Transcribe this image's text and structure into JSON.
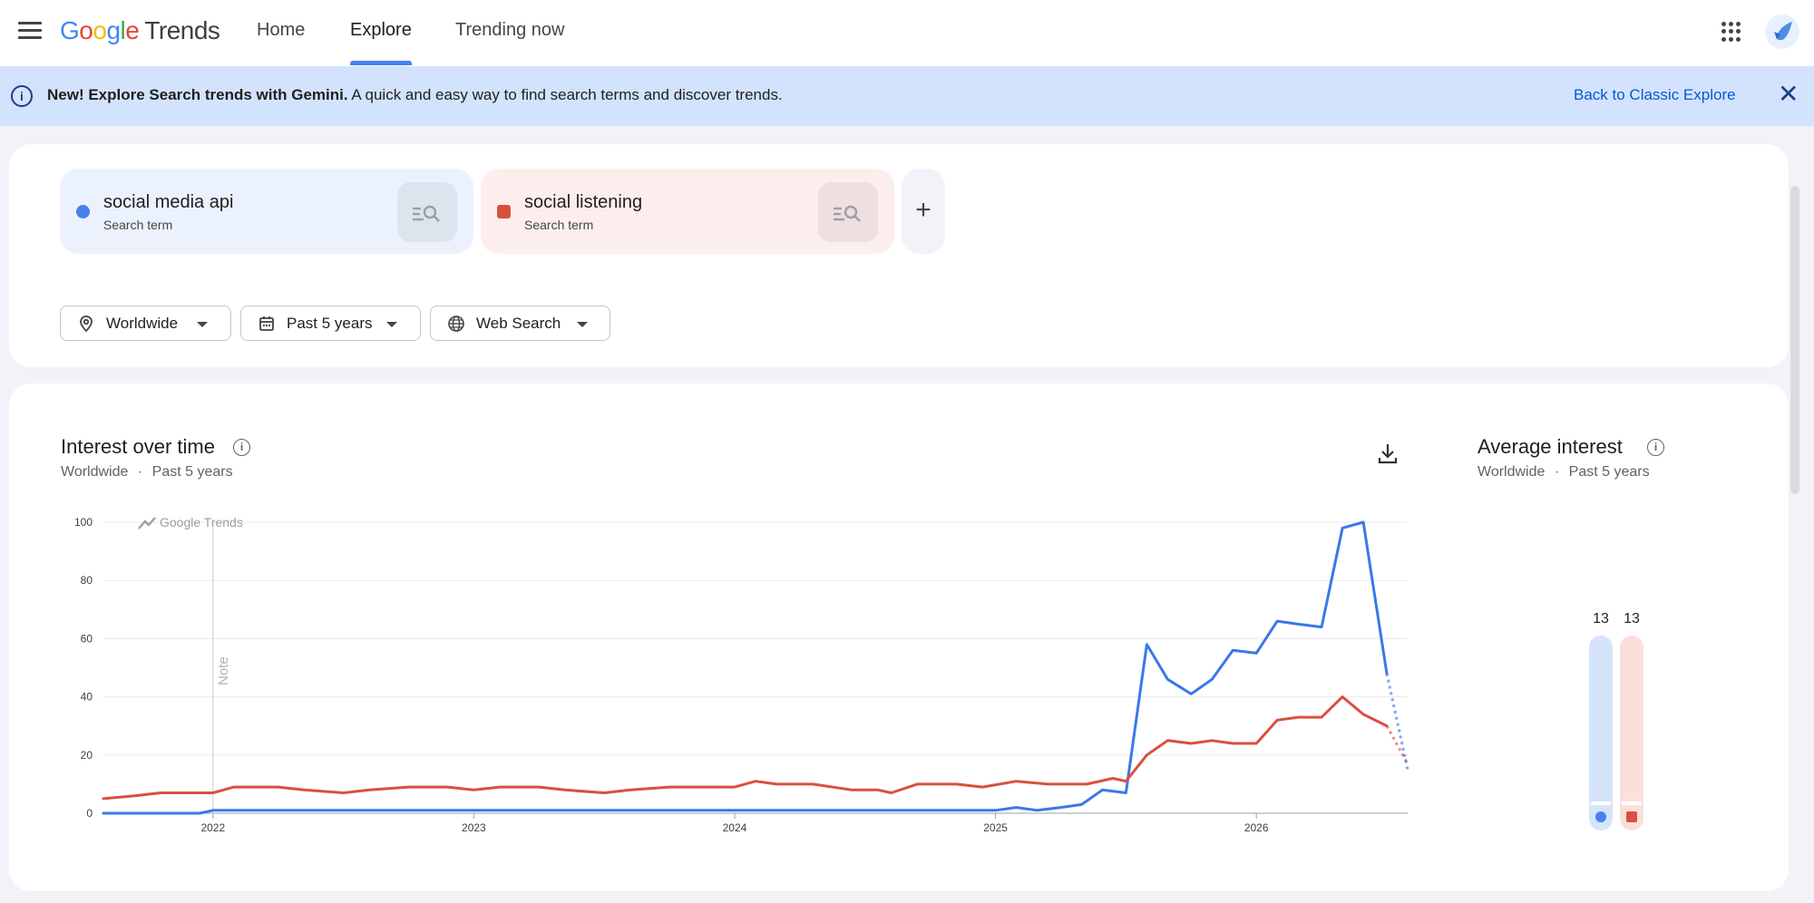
{
  "header": {
    "logo_text": "Google",
    "logo_suffix": "Trends",
    "tabs": [
      {
        "label": "Home"
      },
      {
        "label": "Explore"
      },
      {
        "label": "Trending now"
      }
    ]
  },
  "banner": {
    "bold_text": "New! Explore Search trends with Gemini.",
    "text": "A quick and easy way to find search terms and discover trends.",
    "link": "Back to Classic Explore"
  },
  "terms": [
    {
      "name": "social media api",
      "type": "Search term",
      "color": "#4681ec"
    },
    {
      "name": "social listening",
      "type": "Search term",
      "color": "#d9503e"
    }
  ],
  "add_term_label": "+",
  "filters": {
    "location": "Worldwide",
    "time": "Past 5 years",
    "property": "Web Search"
  },
  "interest_over_time": {
    "title": "Interest over time",
    "location": "Worldwide",
    "period": "Past 5 years",
    "separator": "·",
    "watermark": "Google Trends",
    "note_label": "Note"
  },
  "average_interest": {
    "title": "Average interest",
    "location": "Worldwide",
    "period": "Past 5 years",
    "separator": "·"
  },
  "chart_data": [
    {
      "type": "line",
      "title": "Interest over time",
      "ylim": [
        0,
        100
      ],
      "y_ticks": [
        0,
        20,
        40,
        60,
        80,
        100
      ],
      "x_ticks": [
        "2022",
        "2023",
        "2024",
        "2025",
        "2026"
      ],
      "x_tick_positions": [
        2022.0,
        2023.0,
        2024.0,
        2025.0,
        2026.0
      ],
      "xlim": [
        2021.58,
        2026.58
      ],
      "note_x": 2022.0,
      "partial_from": 2026.5,
      "grid": true,
      "series": [
        {
          "name": "social media api",
          "color": "#3b78e7",
          "x": [
            2021.58,
            2021.95,
            2022.0,
            2022.4,
            2022.8,
            2023.2,
            2023.6,
            2024.0,
            2024.4,
            2024.8,
            2025.0,
            2025.08,
            2025.16,
            2025.25,
            2025.33,
            2025.41,
            2025.5,
            2025.58,
            2025.66,
            2025.75,
            2025.83,
            2025.91,
            2026.0,
            2026.08,
            2026.16,
            2026.25,
            2026.33,
            2026.41,
            2026.5,
            2026.58
          ],
          "y": [
            0,
            0,
            1,
            1,
            1,
            1,
            1,
            1,
            1,
            1,
            1,
            2,
            1,
            2,
            3,
            8,
            7,
            58,
            46,
            41,
            46,
            56,
            55,
            66,
            65,
            64,
            98,
            100,
            48,
            15
          ]
        },
        {
          "name": "social listening",
          "color": "#d9503e",
          "x": [
            2021.58,
            2021.7,
            2021.8,
            2021.95,
            2022.0,
            2022.08,
            2022.25,
            2022.35,
            2022.5,
            2022.6,
            2022.75,
            2022.9,
            2023.0,
            2023.1,
            2023.25,
            2023.35,
            2023.5,
            2023.6,
            2023.75,
            2023.85,
            2024.0,
            2024.08,
            2024.16,
            2024.3,
            2024.45,
            2024.55,
            2024.6,
            2024.7,
            2024.85,
            2024.95,
            2025.08,
            2025.2,
            2025.35,
            2025.45,
            2025.5,
            2025.58,
            2025.66,
            2025.75,
            2025.83,
            2025.91,
            2026.0,
            2026.08,
            2026.16,
            2026.25,
            2026.33,
            2026.41,
            2026.5,
            2026.58
          ],
          "y": [
            5,
            6,
            7,
            7,
            7,
            9,
            9,
            8,
            7,
            8,
            9,
            9,
            8,
            9,
            9,
            8,
            7,
            8,
            9,
            9,
            9,
            11,
            10,
            10,
            8,
            8,
            7,
            10,
            10,
            9,
            11,
            10,
            10,
            12,
            11,
            20,
            25,
            24,
            25,
            24,
            24,
            32,
            33,
            33,
            40,
            34,
            30,
            17
          ]
        }
      ]
    },
    {
      "type": "bar",
      "title": "Average interest",
      "categories": [
        "social media api",
        "social listening"
      ],
      "values": [
        13,
        13
      ],
      "colors": [
        "#4681ec",
        "#d9503e"
      ],
      "value_labels": [
        "13",
        "13"
      ]
    }
  ]
}
